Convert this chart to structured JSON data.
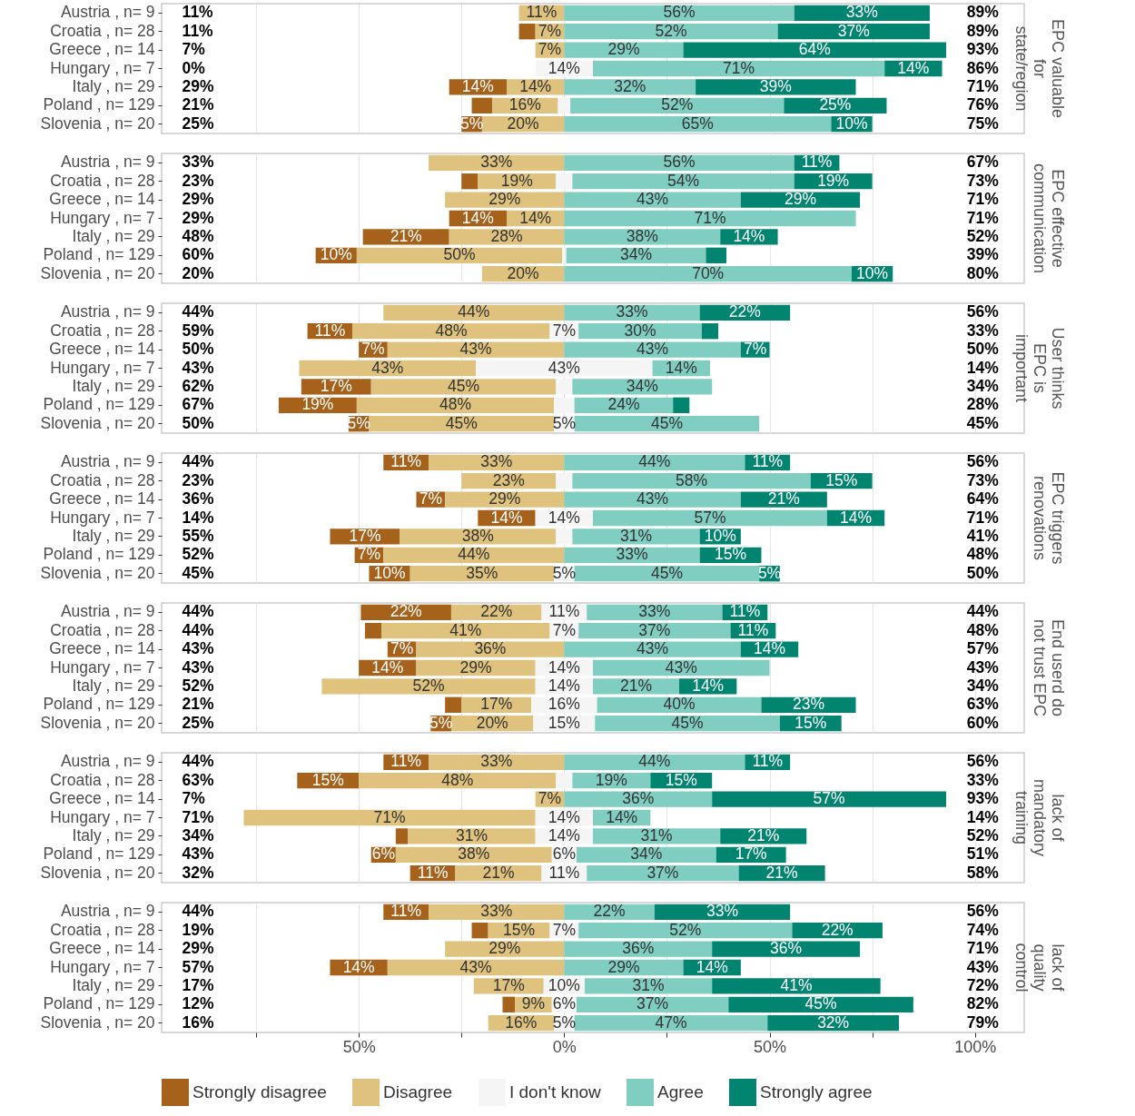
{
  "chart_data": [
    {
      "type": "bar",
      "title": "EPC valuable for state/region",
      "orientation": "horizontal",
      "grid": "x",
      "tick_labels": "y",
      "xlim": [
        -98,
        112
      ],
      "xticks": [
        {
          "value": -75,
          "label": null
        },
        {
          "value": -50,
          "label": null
        },
        {
          "value": -25,
          "label": null
        },
        {
          "value": 0,
          "label": null
        },
        {
          "value": 25,
          "label": null
        },
        {
          "value": 50,
          "label": null
        },
        {
          "value": 75,
          "label": null
        },
        {
          "value": 100,
          "label": null
        }
      ],
      "categories": [
        "Austria , n= 9",
        "Croatia , n= 28",
        "Greece , n= 14",
        "Hungary , n= 7",
        "Italy , n= 29",
        "Poland , n= 129",
        "Slovenia , n= 20"
      ],
      "series": [
        {
          "color": "#a6611a",
          "base": [
            null,
            -11,
            null,
            null,
            -28,
            -22.5,
            -25
          ],
          "values": [
            null,
            4,
            null,
            null,
            14,
            5,
            5
          ],
          "value_labels": [
            null,
            null,
            null,
            null,
            "14%",
            null,
            "5%"
          ]
        },
        {
          "color": "#dfc27d",
          "base": [
            -11,
            -7,
            -7,
            null,
            -14,
            -17.5,
            -20
          ],
          "values": [
            11,
            7,
            7,
            null,
            14,
            16,
            20
          ],
          "value_labels": [
            "11%",
            "7%",
            "7%",
            null,
            "14%",
            "16%",
            "20%"
          ]
        },
        {
          "color": "#f5f5f5",
          "base": [
            null,
            null,
            null,
            -7,
            null,
            -1.5,
            null
          ],
          "values": [
            null,
            null,
            null,
            14,
            null,
            3,
            null
          ],
          "value_labels": [
            null,
            null,
            null,
            "14%",
            null,
            null,
            null
          ]
        },
        {
          "color": "#80cdc1",
          "base": [
            0,
            0,
            0,
            7,
            0,
            1.5,
            0
          ],
          "values": [
            56,
            52,
            29,
            71,
            32,
            52,
            65
          ],
          "value_labels": [
            "56%",
            "52%",
            "29%",
            "71%",
            "32%",
            "52%",
            "65%"
          ]
        },
        {
          "color": "#018571",
          "base": [
            56,
            52,
            29,
            78,
            32,
            53.5,
            65
          ],
          "values": [
            33,
            37,
            64,
            14,
            39,
            25,
            10
          ],
          "value_labels": [
            "33%",
            "37%",
            "64%",
            "14%",
            "39%",
            "25%",
            "10%"
          ]
        }
      ],
      "annotations": [
        "11%",
        "11%",
        "7%",
        "0%",
        "29%",
        "21%",
        "25%",
        "89%",
        "89%",
        "93%",
        "86%",
        "71%",
        "76%",
        "75%"
      ]
    },
    {
      "type": "bar",
      "title": "EPC effective communication",
      "orientation": "horizontal",
      "grid": "x",
      "tick_labels": "y",
      "xlim": [
        -98,
        112
      ],
      "xticks": [
        {
          "value": -75,
          "label": null
        },
        {
          "value": -50,
          "label": null
        },
        {
          "value": -25,
          "label": null
        },
        {
          "value": 0,
          "label": null
        },
        {
          "value": 25,
          "label": null
        },
        {
          "value": 50,
          "label": null
        },
        {
          "value": 75,
          "label": null
        },
        {
          "value": 100,
          "label": null
        }
      ],
      "categories": [
        "Austria , n= 9",
        "Croatia , n= 28",
        "Greece , n= 14",
        "Hungary , n= 7",
        "Italy , n= 29",
        "Poland , n= 129",
        "Slovenia , n= 20"
      ],
      "series": [
        {
          "color": "#a6611a",
          "base": [
            null,
            -25,
            null,
            -28,
            -49,
            -60.5,
            null
          ],
          "values": [
            null,
            4,
            null,
            14,
            21,
            10,
            null
          ],
          "value_labels": [
            null,
            null,
            null,
            "14%",
            "21%",
            "10%",
            null
          ]
        },
        {
          "color": "#dfc27d",
          "base": [
            -33,
            -21,
            -29,
            -14,
            -28,
            -50.5,
            -20
          ],
          "values": [
            33,
            19,
            29,
            14,
            28,
            50,
            20
          ],
          "value_labels": [
            "33%",
            "19%",
            "29%",
            "14%",
            "28%",
            "50%",
            "20%"
          ]
        },
        {
          "color": "#f5f5f5",
          "base": [
            null,
            -2,
            null,
            null,
            null,
            -0.5,
            null
          ],
          "values": [
            null,
            4,
            null,
            null,
            null,
            1,
            null
          ],
          "value_labels": [
            null,
            null,
            null,
            null,
            null,
            null,
            null
          ]
        },
        {
          "color": "#80cdc1",
          "base": [
            0,
            2,
            0,
            0,
            0,
            0.5,
            0
          ],
          "values": [
            56,
            54,
            43,
            71,
            38,
            34,
            70
          ],
          "value_labels": [
            "56%",
            "54%",
            "43%",
            "71%",
            "38%",
            "34%",
            "70%"
          ]
        },
        {
          "color": "#018571",
          "base": [
            56,
            56,
            43,
            null,
            38,
            34.5,
            70
          ],
          "values": [
            11,
            19,
            29,
            null,
            14,
            5,
            10
          ],
          "value_labels": [
            "11%",
            "19%",
            "29%",
            null,
            "14%",
            null,
            "10%"
          ]
        }
      ],
      "annotations": [
        "33%",
        "23%",
        "29%",
        "29%",
        "48%",
        "60%",
        "20%",
        "67%",
        "73%",
        "71%",
        "71%",
        "52%",
        "39%",
        "80%"
      ]
    },
    {
      "type": "bar",
      "title": "User thinks EPC is important",
      "orientation": "horizontal",
      "grid": "x",
      "tick_labels": "y",
      "xlim": [
        -98,
        112
      ],
      "xticks": [
        {
          "value": -75,
          "label": null
        },
        {
          "value": -50,
          "label": null
        },
        {
          "value": -25,
          "label": null
        },
        {
          "value": 0,
          "label": null
        },
        {
          "value": 25,
          "label": null
        },
        {
          "value": 50,
          "label": null
        },
        {
          "value": 75,
          "label": null
        },
        {
          "value": 100,
          "label": null
        }
      ],
      "categories": [
        "Austria , n= 9",
        "Croatia , n= 28",
        "Greece , n= 14",
        "Hungary , n= 7",
        "Italy , n= 29",
        "Poland , n= 129",
        "Slovenia , n= 20"
      ],
      "series": [
        {
          "color": "#a6611a",
          "base": [
            null,
            -62.5,
            -50,
            null,
            -64,
            -69.5,
            -52.5
          ],
          "values": [
            null,
            11,
            7,
            null,
            17,
            19,
            5
          ],
          "value_labels": [
            null,
            "11%",
            "7%",
            null,
            "17%",
            "19%",
            "5%"
          ]
        },
        {
          "color": "#dfc27d",
          "base": [
            -44,
            -51.5,
            -43,
            -64.5,
            -47,
            -50.5,
            -47.5
          ],
          "values": [
            44,
            48,
            43,
            43,
            45,
            48,
            45
          ],
          "value_labels": [
            "44%",
            "48%",
            "43%",
            "43%",
            "45%",
            "48%",
            "45%"
          ]
        },
        {
          "color": "#f5f5f5",
          "base": [
            null,
            -3.5,
            null,
            -21.5,
            -2,
            -2.5,
            -2.5
          ],
          "values": [
            null,
            7,
            null,
            43,
            4,
            5,
            5
          ],
          "value_labels": [
            null,
            "7%",
            null,
            "43%",
            null,
            null,
            "5%"
          ]
        },
        {
          "color": "#80cdc1",
          "base": [
            0,
            3.5,
            0,
            21.5,
            2,
            2.5,
            2.5
          ],
          "values": [
            33,
            30,
            43,
            14,
            34,
            24,
            45
          ],
          "value_labels": [
            "33%",
            "30%",
            "43%",
            "14%",
            "34%",
            "24%",
            "45%"
          ]
        },
        {
          "color": "#018571",
          "base": [
            33,
            33.5,
            43,
            null,
            null,
            26.5,
            null
          ],
          "values": [
            22,
            4,
            7,
            null,
            null,
            4,
            null
          ],
          "value_labels": [
            "22%",
            null,
            "7%",
            null,
            null,
            null,
            null
          ]
        }
      ],
      "annotations": [
        "44%",
        "59%",
        "50%",
        "43%",
        "62%",
        "67%",
        "50%",
        "56%",
        "33%",
        "50%",
        "14%",
        "34%",
        "28%",
        "45%"
      ]
    },
    {
      "type": "bar",
      "title": "EPC triggers renovations",
      "orientation": "horizontal",
      "grid": "x",
      "tick_labels": "y",
      "xlim": [
        -98,
        112
      ],
      "xticks": [
        {
          "value": -75,
          "label": null
        },
        {
          "value": -50,
          "label": null
        },
        {
          "value": -25,
          "label": null
        },
        {
          "value": 0,
          "label": null
        },
        {
          "value": 25,
          "label": null
        },
        {
          "value": 50,
          "label": null
        },
        {
          "value": 75,
          "label": null
        },
        {
          "value": 100,
          "label": null
        }
      ],
      "categories": [
        "Austria , n= 9",
        "Croatia , n= 28",
        "Greece , n= 14",
        "Hungary , n= 7",
        "Italy , n= 29",
        "Poland , n= 129",
        "Slovenia , n= 20"
      ],
      "series": [
        {
          "color": "#a6611a",
          "base": [
            -44,
            null,
            -36,
            -21,
            -57,
            -51,
            -47.5
          ],
          "values": [
            11,
            null,
            7,
            14,
            17,
            7,
            10
          ],
          "value_labels": [
            "11%",
            null,
            "7%",
            "14%",
            "17%",
            "7%",
            "10%"
          ]
        },
        {
          "color": "#dfc27d",
          "base": [
            -33,
            -25,
            -29,
            null,
            -40,
            -44,
            -37.5
          ],
          "values": [
            33,
            23,
            29,
            null,
            38,
            44,
            35
          ],
          "value_labels": [
            "33%",
            "23%",
            "29%",
            null,
            "38%",
            "44%",
            "35%"
          ]
        },
        {
          "color": "#f5f5f5",
          "base": [
            null,
            -2,
            null,
            -7,
            -2,
            null,
            -2.5
          ],
          "values": [
            null,
            4,
            null,
            14,
            4,
            null,
            5
          ],
          "value_labels": [
            null,
            null,
            null,
            "14%",
            null,
            null,
            "5%"
          ]
        },
        {
          "color": "#80cdc1",
          "base": [
            0,
            2,
            0,
            7,
            2,
            0,
            2.5
          ],
          "values": [
            44,
            58,
            43,
            57,
            31,
            33,
            45
          ],
          "value_labels": [
            "44%",
            "58%",
            "43%",
            "57%",
            "31%",
            "33%",
            "45%"
          ]
        },
        {
          "color": "#018571",
          "base": [
            44,
            60,
            43,
            64,
            33,
            33,
            47.5
          ],
          "values": [
            11,
            15,
            21,
            14,
            10,
            15,
            5
          ],
          "value_labels": [
            "11%",
            "15%",
            "21%",
            "14%",
            "10%",
            "15%",
            "5%"
          ]
        }
      ],
      "annotations": [
        "44%",
        "23%",
        "36%",
        "14%",
        "55%",
        "52%",
        "45%",
        "56%",
        "73%",
        "64%",
        "71%",
        "41%",
        "48%",
        "50%"
      ]
    },
    {
      "type": "bar",
      "title": "End userd do not trust EPC",
      "orientation": "horizontal",
      "grid": "x",
      "tick_labels": "y",
      "xlim": [
        -98,
        112
      ],
      "xticks": [
        {
          "value": -75,
          "label": null
        },
        {
          "value": -50,
          "label": null
        },
        {
          "value": -25,
          "label": null
        },
        {
          "value": 0,
          "label": null
        },
        {
          "value": 25,
          "label": null
        },
        {
          "value": 50,
          "label": null
        },
        {
          "value": 75,
          "label": null
        },
        {
          "value": 100,
          "label": null
        }
      ],
      "categories": [
        "Austria , n= 9",
        "Croatia , n= 28",
        "Greece , n= 14",
        "Hungary , n= 7",
        "Italy , n= 29",
        "Poland , n= 129",
        "Slovenia , n= 20"
      ],
      "series": [
        {
          "color": "#a6611a",
          "base": [
            -49.5,
            -48.5,
            -43,
            -50,
            null,
            -29,
            -32.5
          ],
          "values": [
            22,
            4,
            7,
            14,
            null,
            4,
            5
          ],
          "value_labels": [
            "22%",
            null,
            "7%",
            "14%",
            null,
            null,
            "5%"
          ]
        },
        {
          "color": "#dfc27d",
          "base": [
            -27.5,
            -44.5,
            -36,
            -36,
            -59,
            -25,
            -27.5
          ],
          "values": [
            22,
            41,
            36,
            29,
            52,
            17,
            20
          ],
          "value_labels": [
            "22%",
            "41%",
            "36%",
            "29%",
            "52%",
            "17%",
            "20%"
          ]
        },
        {
          "color": "#f5f5f5",
          "base": [
            -5.5,
            -3.5,
            null,
            -7,
            -7,
            -8,
            -7.5
          ],
          "values": [
            11,
            7,
            null,
            14,
            14,
            16,
            15
          ],
          "value_labels": [
            "11%",
            "7%",
            null,
            "14%",
            "14%",
            "16%",
            "15%"
          ]
        },
        {
          "color": "#80cdc1",
          "base": [
            5.5,
            3.5,
            0,
            7,
            7,
            8,
            7.5
          ],
          "values": [
            33,
            37,
            43,
            43,
            21,
            40,
            45
          ],
          "value_labels": [
            "33%",
            "37%",
            "43%",
            "43%",
            "21%",
            "40%",
            "45%"
          ]
        },
        {
          "color": "#018571",
          "base": [
            38.5,
            40.5,
            43,
            null,
            28,
            48,
            52.5
          ],
          "values": [
            11,
            11,
            14,
            null,
            14,
            23,
            15
          ],
          "value_labels": [
            "11%",
            "11%",
            "14%",
            null,
            "14%",
            "23%",
            "15%"
          ]
        }
      ],
      "annotations": [
        "44%",
        "44%",
        "43%",
        "43%",
        "52%",
        "21%",
        "25%",
        "44%",
        "48%",
        "57%",
        "43%",
        "34%",
        "63%",
        "60%"
      ]
    },
    {
      "type": "bar",
      "title": "lack of mandatory training",
      "orientation": "horizontal",
      "grid": "x",
      "tick_labels": "y",
      "xlim": [
        -98,
        112
      ],
      "xticks": [
        {
          "value": -75,
          "label": null
        },
        {
          "value": -50,
          "label": null
        },
        {
          "value": -25,
          "label": null
        },
        {
          "value": 0,
          "label": null
        },
        {
          "value": 25,
          "label": null
        },
        {
          "value": 50,
          "label": null
        },
        {
          "value": 75,
          "label": null
        },
        {
          "value": 100,
          "label": null
        }
      ],
      "categories": [
        "Austria , n= 9",
        "Croatia , n= 28",
        "Greece , n= 14",
        "Hungary , n= 7",
        "Italy , n= 29",
        "Poland , n= 129",
        "Slovenia , n= 20"
      ],
      "series": [
        {
          "color": "#a6611a",
          "base": [
            -44,
            -65,
            null,
            null,
            -41,
            -47,
            -37.5
          ],
          "values": [
            11,
            15,
            null,
            null,
            3,
            6,
            11
          ],
          "value_labels": [
            "11%",
            "15%",
            null,
            null,
            null,
            "6%",
            "11%"
          ]
        },
        {
          "color": "#dfc27d",
          "base": [
            -33,
            -50,
            -7,
            -78,
            -38,
            -41,
            -26.5
          ],
          "values": [
            33,
            48,
            7,
            71,
            31,
            38,
            21
          ],
          "value_labels": [
            "33%",
            "48%",
            "7%",
            "71%",
            "31%",
            "38%",
            "21%"
          ]
        },
        {
          "color": "#f5f5f5",
          "base": [
            null,
            -2,
            null,
            -7,
            -7,
            -3,
            -5.5
          ],
          "values": [
            null,
            4,
            null,
            14,
            14,
            6,
            11
          ],
          "value_labels": [
            null,
            null,
            null,
            "14%",
            "14%",
            "6%",
            "11%"
          ]
        },
        {
          "color": "#80cdc1",
          "base": [
            0,
            2,
            0,
            7,
            7,
            3,
            5.5
          ],
          "values": [
            44,
            19,
            36,
            14,
            31,
            34,
            37
          ],
          "value_labels": [
            "44%",
            "19%",
            "36%",
            "14%",
            "31%",
            "34%",
            "37%"
          ]
        },
        {
          "color": "#018571",
          "base": [
            44,
            21,
            36,
            null,
            38,
            37,
            42.5
          ],
          "values": [
            11,
            15,
            57,
            null,
            21,
            17,
            21
          ],
          "value_labels": [
            "11%",
            "15%",
            "57%",
            null,
            "21%",
            "17%",
            "21%"
          ]
        }
      ],
      "annotations": [
        "44%",
        "63%",
        "7%",
        "71%",
        "34%",
        "43%",
        "32%",
        "56%",
        "33%",
        "93%",
        "14%",
        "52%",
        "51%",
        "58%"
      ]
    },
    {
      "type": "bar",
      "title": "lack of quality control",
      "orientation": "horizontal",
      "grid": "x",
      "legend": "bottom",
      "xlim": [
        -98,
        112
      ],
      "xticks": [
        {
          "value": -75,
          "label": null
        },
        {
          "value": -50,
          "label": "50%"
        },
        {
          "value": -25,
          "label": null
        },
        {
          "value": 0,
          "label": "0%"
        },
        {
          "value": 25,
          "label": null
        },
        {
          "value": 50,
          "label": "50%"
        },
        {
          "value": 75,
          "label": null
        },
        {
          "value": 100,
          "label": "100%"
        }
      ],
      "categories": [
        "Austria , n= 9",
        "Croatia , n= 28",
        "Greece , n= 14",
        "Hungary , n= 7",
        "Italy , n= 29",
        "Poland , n= 129",
        "Slovenia , n= 20"
      ],
      "series": [
        {
          "name": "Strongly disagree",
          "color": "#a6611a",
          "base": [
            -44,
            -22.5,
            null,
            -57,
            null,
            -15,
            null
          ],
          "values": [
            11,
            4,
            null,
            14,
            null,
            3,
            null
          ],
          "value_labels": [
            "11%",
            null,
            null,
            "14%",
            null,
            null,
            null
          ]
        },
        {
          "name": "Disagree",
          "color": "#dfc27d",
          "base": [
            -33,
            -18.5,
            -29,
            -43,
            -22,
            -12,
            -18.5
          ],
          "values": [
            33,
            15,
            29,
            43,
            17,
            9,
            16
          ],
          "value_labels": [
            "33%",
            "15%",
            "29%",
            "43%",
            "17%",
            "9%",
            "16%"
          ]
        },
        {
          "name": "I don't know",
          "color": "#f5f5f5",
          "base": [
            null,
            -3.5,
            null,
            null,
            -5,
            -3,
            -2.5
          ],
          "values": [
            null,
            7,
            null,
            null,
            10,
            6,
            5
          ],
          "value_labels": [
            null,
            "7%",
            null,
            null,
            "10%",
            "6%",
            "5%"
          ]
        },
        {
          "name": "Agree",
          "color": "#80cdc1",
          "base": [
            0,
            3.5,
            0,
            0,
            5,
            3,
            2.5
          ],
          "values": [
            22,
            52,
            36,
            29,
            31,
            37,
            47
          ],
          "value_labels": [
            "22%",
            "52%",
            "36%",
            "29%",
            "31%",
            "37%",
            "47%"
          ]
        },
        {
          "name": "Strongly agree",
          "color": "#018571",
          "base": [
            22,
            55.5,
            36,
            29,
            36,
            40,
            49.5
          ],
          "values": [
            33,
            22,
            36,
            14,
            41,
            45,
            32
          ],
          "value_labels": [
            "33%",
            "22%",
            "36%",
            "14%",
            "41%",
            "45%",
            "32%"
          ]
        }
      ],
      "annotations": [
        "44%",
        "19%",
        "29%",
        "57%",
        "17%",
        "12%",
        "16%",
        "56%",
        "74%",
        "71%",
        "43%",
        "72%",
        "82%",
        "79%"
      ]
    }
  ]
}
